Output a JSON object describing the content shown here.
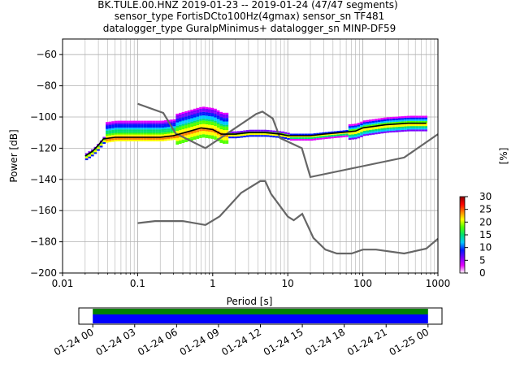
{
  "title": {
    "line1": "BK.TULE.00.HNZ   2019-01-23 -- 2019-01-24  (47/47 segments)",
    "line2": "sensor_type FortisDCto100Hz(4gmax) sensor_sn TF481",
    "line3": "datalogger_type GuralpMinimus+ datalogger_sn MINP-DF59"
  },
  "chart_data": [
    {
      "type": "heatmap",
      "xlabel": "Period [s]",
      "ylabel": "Power [dB]",
      "xscale": "log",
      "xlim": [
        0.01,
        1000
      ],
      "ylim": [
        -200,
        -50
      ],
      "grid": true,
      "xticks": [
        {
          "value": 0.01,
          "label": "0.01"
        },
        {
          "value": 0.1,
          "label": "0.1"
        },
        {
          "value": 1,
          "label": "1"
        },
        {
          "value": 10,
          "label": "10"
        },
        {
          "value": 100,
          "label": "100"
        },
        {
          "value": 1000,
          "label": "1000"
        }
      ],
      "yticks": [
        {
          "value": -60,
          "label": "−60"
        },
        {
          "value": -80,
          "label": "−80"
        },
        {
          "value": -100,
          "label": "−100"
        },
        {
          "value": -120,
          "label": "−120"
        },
        {
          "value": -140,
          "label": "−140"
        },
        {
          "value": -160,
          "label": "−160"
        },
        {
          "value": -180,
          "label": "−180"
        },
        {
          "value": -200,
          "label": "−200"
        }
      ],
      "noise_models": [
        {
          "points": [
            [
              0.1,
              -91.5
            ],
            [
              0.22,
              -97.4
            ],
            [
              0.32,
              -110.5
            ],
            [
              0.8,
              -120.0
            ],
            [
              3.8,
              -98.0
            ],
            [
              4.6,
              -96.5
            ],
            [
              6.3,
              -101.0
            ],
            [
              7.9,
              -113.5
            ],
            [
              15.4,
              -120.0
            ],
            [
              20.0,
              -138.5
            ],
            [
              354.8,
              -126.0
            ],
            [
              1000,
              -111.0
            ]
          ]
        },
        {
          "points": [
            [
              0.1,
              -168.0
            ],
            [
              0.17,
              -166.7
            ],
            [
              0.4,
              -166.7
            ],
            [
              0.8,
              -169.2
            ],
            [
              1.24,
              -163.7
            ],
            [
              2.4,
              -148.6
            ],
            [
              4.3,
              -141.1
            ],
            [
              5.0,
              -141.1
            ],
            [
              6.0,
              -149.4
            ],
            [
              10.0,
              -163.8
            ],
            [
              12.0,
              -166.2
            ],
            [
              15.6,
              -162.1
            ],
            [
              21.9,
              -177.5
            ],
            [
              31.6,
              -185.0
            ],
            [
              45.0,
              -187.5
            ],
            [
              70.8,
              -187.5
            ],
            [
              100,
              -185.0
            ],
            [
              150,
              -185.0
            ],
            [
              354.8,
              -187.5
            ],
            [
              700,
              -184.4
            ],
            [
              1000,
              -178.0
            ]
          ]
        }
      ],
      "mean_curve": [
        [
          0.02,
          -125
        ],
        [
          0.025,
          -122
        ],
        [
          0.03,
          -118
        ],
        [
          0.035,
          -114
        ],
        [
          0.05,
          -113
        ],
        [
          0.1,
          -113
        ],
        [
          0.2,
          -113
        ],
        [
          0.3,
          -112
        ],
        [
          0.5,
          -109
        ],
        [
          0.7,
          -107
        ],
        [
          1.0,
          -108
        ],
        [
          1.3,
          -111
        ],
        [
          2,
          -111
        ],
        [
          3,
          -110
        ],
        [
          5,
          -110
        ],
        [
          8,
          -111
        ],
        [
          10,
          -112
        ],
        [
          20,
          -112
        ],
        [
          30,
          -111
        ],
        [
          50,
          -110
        ],
        [
          80,
          -109
        ],
        [
          100,
          -107
        ],
        [
          200,
          -105
        ],
        [
          400,
          -104
        ],
        [
          700,
          -104
        ]
      ],
      "colorbar": {
        "label": "[%]",
        "min": 0,
        "max": 30,
        "ticks": [
          {
            "value": 0,
            "label": "0"
          },
          {
            "value": 5,
            "label": "5"
          },
          {
            "value": 10,
            "label": "10"
          },
          {
            "value": 15,
            "label": "15"
          },
          {
            "value": 20,
            "label": "20"
          },
          {
            "value": 25,
            "label": "25"
          },
          {
            "value": 30,
            "label": "30"
          }
        ],
        "colors": [
          "#ffffff",
          "#e600ff",
          "#7a00ff",
          "#0018ff",
          "#00c8ff",
          "#00e070",
          "#50ff00",
          "#ffff00",
          "#ff8000",
          "#ff0000",
          "#8b0000"
        ]
      }
    },
    {
      "type": "bar",
      "description_role": "data availability timeline",
      "xlim": [
        "2019-01-23 23:00",
        "2019-01-25 01:00"
      ],
      "coverage": [
        {
          "start": "2019-01-24 00:00",
          "end": "2019-01-25 00:00"
        }
      ],
      "xticks": [
        {
          "value": "2019-01-24 00:00",
          "label": "01-24 00"
        },
        {
          "value": "2019-01-24 03:00",
          "label": "01-24 03"
        },
        {
          "value": "2019-01-24 06:00",
          "label": "01-24 06"
        },
        {
          "value": "2019-01-24 09:00",
          "label": "01-24 09"
        },
        {
          "value": "2019-01-24 12:00",
          "label": "01-24 12"
        },
        {
          "value": "2019-01-24 15:00",
          "label": "01-24 15"
        },
        {
          "value": "2019-01-24 18:00",
          "label": "01-24 18"
        },
        {
          "value": "2019-01-24 21:00",
          "label": "01-24 21"
        },
        {
          "value": "2019-01-25 00:00",
          "label": "01-25 00"
        }
      ],
      "colors": {
        "top": "#008000",
        "bottom": "#0000ff"
      }
    }
  ]
}
